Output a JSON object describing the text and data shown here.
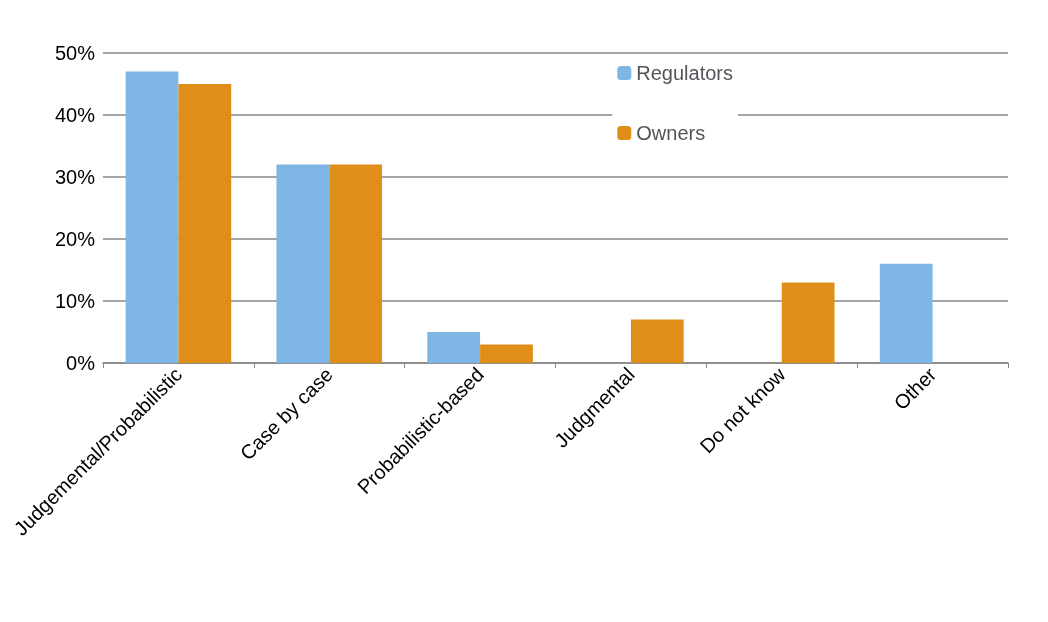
{
  "chart_data": {
    "type": "bar",
    "categories": [
      "Judgemental/Probabilistic",
      "Case by case",
      "Probabilistic-based",
      "Judgmental",
      "Do not know",
      "Other"
    ],
    "series": [
      {
        "name": "Regulators",
        "color": "#7eb6e6",
        "values": [
          47,
          32,
          5,
          0,
          0,
          16
        ]
      },
      {
        "name": "Owners",
        "color": "#e08e1a",
        "values": [
          45,
          32,
          3,
          7,
          13,
          0
        ]
      }
    ],
    "ylim": [
      0,
      50
    ],
    "yticks": [
      {
        "value": 0,
        "label": "0%"
      },
      {
        "value": 10,
        "label": "10%"
      },
      {
        "value": 20,
        "label": "20%"
      },
      {
        "value": 30,
        "label": "30%"
      },
      {
        "value": 40,
        "label": "40%"
      },
      {
        "value": 50,
        "label": "50%"
      }
    ],
    "grid": "y",
    "legend": "top right"
  }
}
